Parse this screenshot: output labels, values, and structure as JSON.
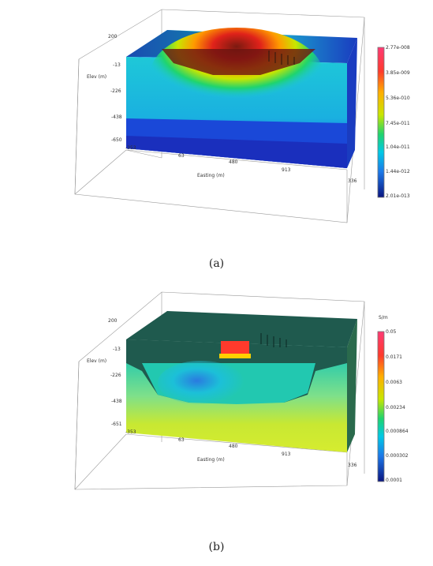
{
  "panels": [
    {
      "caption": "(a)",
      "ylabel": "Elev (m)",
      "xlabel": "Easting (m)",
      "unit": "",
      "z_ticks": [
        "200",
        "-13",
        "-226",
        "-438",
        "-650"
      ],
      "x_ticks": [
        "-353",
        "63",
        "480",
        "913"
      ],
      "y_tick": "336",
      "colorbar_ticks": [
        "2.77e-008",
        "3.85e-009",
        "5.36e-010",
        "7.45e-011",
        "1.04e-011",
        "1.44e-012",
        "2.01e-013"
      ],
      "colors": [
        "#ff3a74",
        "#ff3a2c",
        "#ffae00",
        "#c8e600",
        "#1fd46e",
        "#00c8e6",
        "#1c78e8",
        "#1a2fbd",
        "#0a1580"
      ]
    },
    {
      "caption": "(b)",
      "ylabel": "Elev (m)",
      "xlabel": "Easting (m)",
      "unit": "S/m",
      "z_ticks": [
        "200",
        "-13",
        "-226",
        "-438",
        "-651"
      ],
      "x_ticks": [
        "-353",
        "63",
        "480",
        "913"
      ],
      "y_tick": "336",
      "colorbar_ticks": [
        "0.05",
        "0.0171",
        "0.0063",
        "0.00234",
        "0.000864",
        "0.000302",
        "0.0001"
      ],
      "colors": [
        "#ff3a74",
        "#ff3a2c",
        "#ffae00",
        "#c8e600",
        "#1fd46e",
        "#00c8e6",
        "#1c78e8",
        "#1a2fbd",
        "#0a1580"
      ]
    }
  ]
}
